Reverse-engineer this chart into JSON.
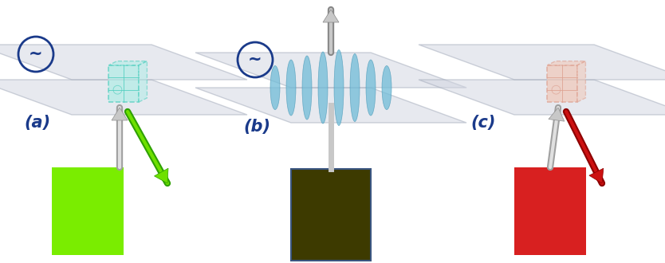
{
  "bg_color": "#ffffff",
  "panel_a": {
    "label": "(a)",
    "label_color": "#1a3a8a",
    "swatch_color": "#7aed00",
    "arrow_in_color": "#b0b0b0",
    "arrow_out_color": "#6ee000",
    "crystal_color": "#4ecebe",
    "crystal_fill": "#b0ece6",
    "wave_color": "#1a3a8a"
  },
  "panel_b": {
    "label": "(b)",
    "label_color": "#1a3a8a",
    "swatch_color": "#3d3a00",
    "swatch_border": "#3a5580",
    "arrow_color": "#c0c0c0",
    "wave_color_light": "#70bcd8",
    "wave_color": "#1a3a8a"
  },
  "panel_c": {
    "label": "(c)",
    "label_color": "#1a3a8a",
    "swatch_color": "#d82020",
    "arrow_in_color": "#b0b0b0",
    "arrow_out_color": "#cc1111",
    "crystal_color": "#dda090",
    "crystal_fill": "#f0c8b8",
    "wave_color": "#1a3a8a"
  },
  "plate_color": "#d0d4e0",
  "plate_edge_color": "#a0a8b8",
  "plate_alpha": 0.5
}
